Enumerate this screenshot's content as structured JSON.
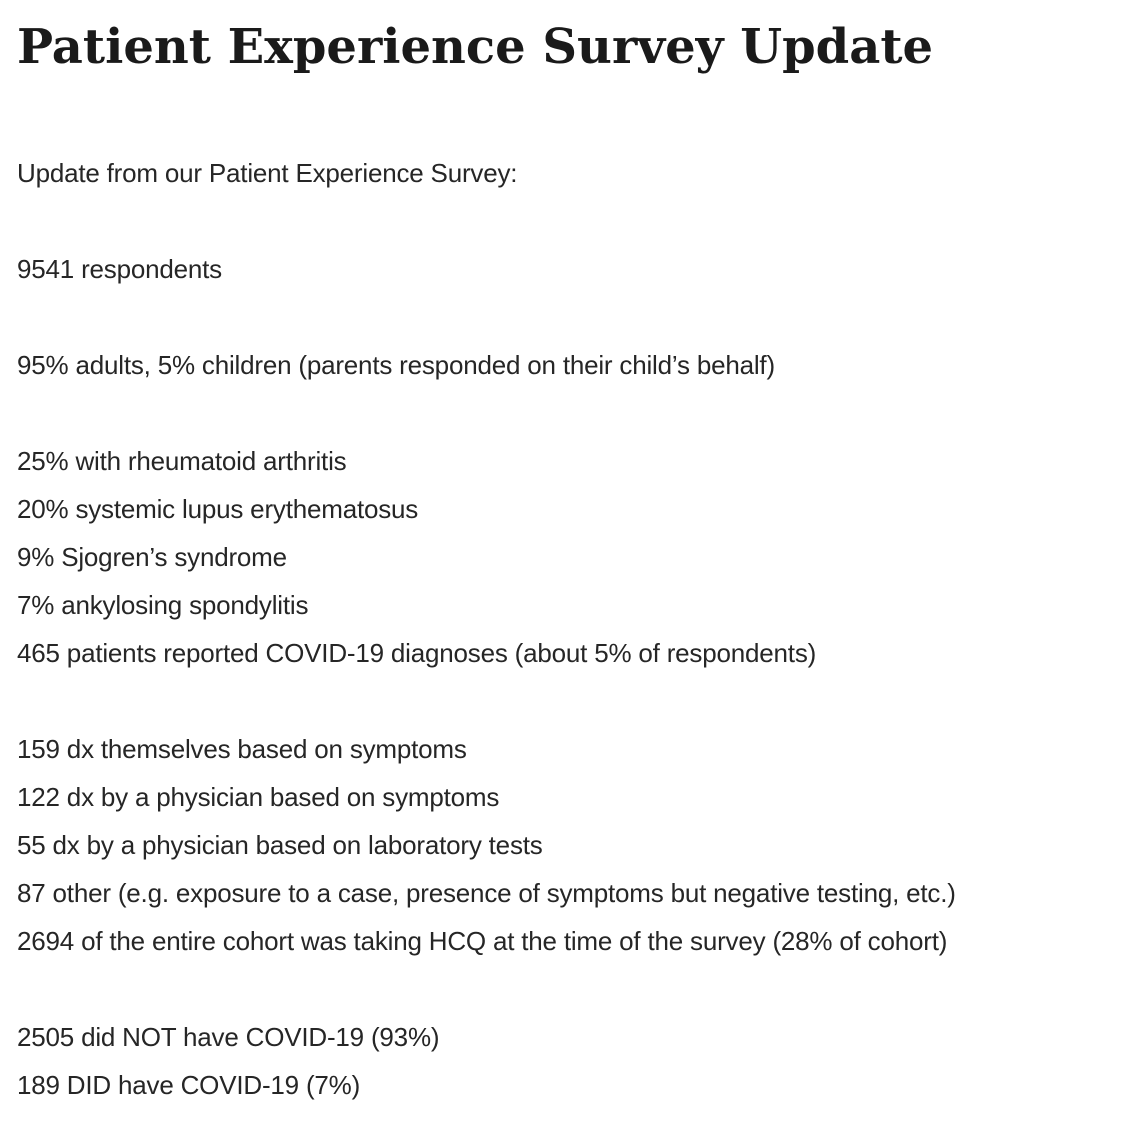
{
  "page": {
    "title": "Patient Experience Survey Update",
    "intro": "Update from our Patient Experience Survey:"
  },
  "colors": {
    "background": "#ffffff",
    "heading_text": "#1a1a1a",
    "body_text": "#262626"
  },
  "content": {
    "sections": [
      {
        "lines": [
          "9541 respondents"
        ]
      },
      {
        "lines": [
          "95% adults, 5% children (parents responded on their child’s behalf)"
        ]
      },
      {
        "lines": [
          "25% with rheumatoid arthritis",
          "20% systemic lupus erythematosus",
          "9% Sjogren’s syndrome",
          "7% ankylosing spondylitis",
          "465 patients reported COVID-19 diagnoses (about 5% of respondents)"
        ]
      },
      {
        "lines": [
          "159 dx themselves based on symptoms",
          "122 dx by a physician based on symptoms",
          "55 dx by a physician based on laboratory tests",
          "87 other (e.g. exposure to a case, presence of symptoms but negative testing, etc.)",
          "2694 of the entire cohort was taking HCQ at the time of the survey (28% of cohort)"
        ]
      },
      {
        "lines": [
          "2505 did NOT have COVID-19 (93%)",
          "189 DID have COVID-19 (7%)"
        ]
      }
    ]
  }
}
